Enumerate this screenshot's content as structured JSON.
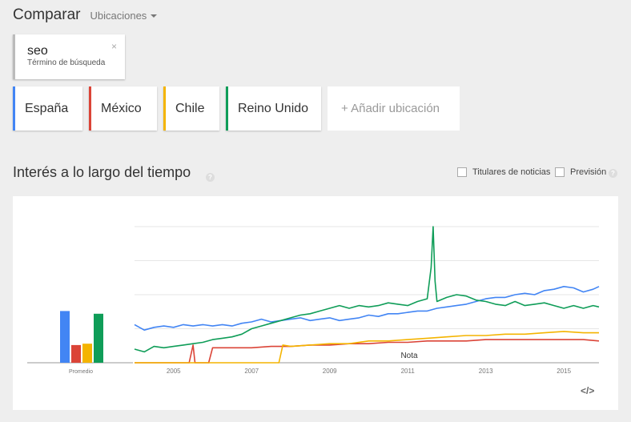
{
  "header": {
    "title": "Comparar",
    "locations_dropdown": "Ubicaciones"
  },
  "search_term": {
    "name": "seo",
    "subtitle": "Término de búsqueda",
    "close": "×"
  },
  "locations": [
    {
      "label": "España",
      "color": "#4285f4"
    },
    {
      "label": "México",
      "color": "#db4437"
    },
    {
      "label": "Chile",
      "color": "#f4b400"
    },
    {
      "label": "Reino Unido",
      "color": "#0f9d58"
    }
  ],
  "add_location": "+ Añadir ubicación",
  "interest": {
    "title": "Interés a lo largo del tiempo",
    "help": "?",
    "options": [
      {
        "label": "Titulares de noticias",
        "checked": false
      },
      {
        "label": "Previsión",
        "checked": false
      }
    ],
    "embed": "</>"
  },
  "chart_data": {
    "type": "line",
    "x_start": 2004.0,
    "x_end": 2015.9,
    "x_ticks": [
      "2005",
      "2007",
      "2009",
      "2011",
      "2013",
      "2015"
    ],
    "ylim": [
      0,
      100
    ],
    "grid": true,
    "annotation": "Nota",
    "average_label": "Promedio",
    "averages": [
      {
        "name": "España",
        "color": "#4285f4",
        "value": 38
      },
      {
        "name": "México",
        "color": "#db4437",
        "value": 13
      },
      {
        "name": "Chile",
        "color": "#f4b400",
        "value": 14
      },
      {
        "name": "Reino Unido",
        "color": "#0f9d58",
        "value": 36
      }
    ],
    "series": [
      {
        "name": "España",
        "color": "#4285f4",
        "points": [
          [
            2004.0,
            28
          ],
          [
            2004.25,
            24
          ],
          [
            2004.5,
            26
          ],
          [
            2004.75,
            27
          ],
          [
            2005.0,
            26
          ],
          [
            2005.25,
            28
          ],
          [
            2005.5,
            27
          ],
          [
            2005.75,
            28
          ],
          [
            2006.0,
            27
          ],
          [
            2006.25,
            28
          ],
          [
            2006.5,
            27
          ],
          [
            2006.75,
            29
          ],
          [
            2007.0,
            30
          ],
          [
            2007.25,
            32
          ],
          [
            2007.5,
            30
          ],
          [
            2007.75,
            31
          ],
          [
            2008.0,
            32
          ],
          [
            2008.25,
            33
          ],
          [
            2008.5,
            31
          ],
          [
            2008.75,
            32
          ],
          [
            2009.0,
            33
          ],
          [
            2009.25,
            31
          ],
          [
            2009.5,
            32
          ],
          [
            2009.75,
            33
          ],
          [
            2010.0,
            35
          ],
          [
            2010.25,
            34
          ],
          [
            2010.5,
            36
          ],
          [
            2010.75,
            36
          ],
          [
            2011.0,
            37
          ],
          [
            2011.25,
            38
          ],
          [
            2011.5,
            38
          ],
          [
            2011.75,
            40
          ],
          [
            2012.0,
            41
          ],
          [
            2012.25,
            42
          ],
          [
            2012.5,
            43
          ],
          [
            2012.75,
            45
          ],
          [
            2013.0,
            47
          ],
          [
            2013.25,
            48
          ],
          [
            2013.5,
            48
          ],
          [
            2013.75,
            50
          ],
          [
            2014.0,
            51
          ],
          [
            2014.25,
            50
          ],
          [
            2014.5,
            53
          ],
          [
            2014.75,
            54
          ],
          [
            2015.0,
            56
          ],
          [
            2015.25,
            55
          ],
          [
            2015.5,
            52
          ],
          [
            2015.75,
            54
          ],
          [
            2015.9,
            56
          ]
        ]
      },
      {
        "name": "México",
        "color": "#db4437",
        "points": [
          [
            2004.0,
            0
          ],
          [
            2005.4,
            0
          ],
          [
            2005.5,
            13
          ],
          [
            2005.55,
            0
          ],
          [
            2005.9,
            0
          ],
          [
            2006.0,
            11
          ],
          [
            2006.5,
            11
          ],
          [
            2007.0,
            11
          ],
          [
            2007.5,
            12
          ],
          [
            2008.0,
            12
          ],
          [
            2008.5,
            13
          ],
          [
            2009.0,
            13
          ],
          [
            2009.5,
            14
          ],
          [
            2010.0,
            14
          ],
          [
            2010.5,
            15
          ],
          [
            2011.0,
            15
          ],
          [
            2011.5,
            16
          ],
          [
            2012.0,
            16
          ],
          [
            2012.5,
            16
          ],
          [
            2013.0,
            17
          ],
          [
            2013.5,
            17
          ],
          [
            2014.0,
            17
          ],
          [
            2014.5,
            17
          ],
          [
            2015.0,
            17
          ],
          [
            2015.5,
            17
          ],
          [
            2015.9,
            16
          ]
        ]
      },
      {
        "name": "Chile",
        "color": "#f4b400",
        "points": [
          [
            2004.0,
            0
          ],
          [
            2007.7,
            0
          ],
          [
            2007.8,
            13
          ],
          [
            2008.0,
            12
          ],
          [
            2008.5,
            13
          ],
          [
            2009.0,
            14
          ],
          [
            2009.5,
            14
          ],
          [
            2010.0,
            16
          ],
          [
            2010.5,
            16
          ],
          [
            2011.0,
            17
          ],
          [
            2011.5,
            18
          ],
          [
            2012.0,
            19
          ],
          [
            2012.5,
            20
          ],
          [
            2013.0,
            20
          ],
          [
            2013.5,
            21
          ],
          [
            2014.0,
            21
          ],
          [
            2014.5,
            22
          ],
          [
            2015.0,
            23
          ],
          [
            2015.5,
            22
          ],
          [
            2015.9,
            22
          ]
        ]
      },
      {
        "name": "Reino Unido",
        "color": "#0f9d58",
        "points": [
          [
            2004.0,
            10
          ],
          [
            2004.25,
            8
          ],
          [
            2004.5,
            12
          ],
          [
            2004.75,
            11
          ],
          [
            2005.0,
            12
          ],
          [
            2005.25,
            13
          ],
          [
            2005.5,
            14
          ],
          [
            2005.75,
            15
          ],
          [
            2006.0,
            17
          ],
          [
            2006.25,
            18
          ],
          [
            2006.5,
            19
          ],
          [
            2006.75,
            21
          ],
          [
            2007.0,
            25
          ],
          [
            2007.25,
            27
          ],
          [
            2007.5,
            29
          ],
          [
            2007.75,
            31
          ],
          [
            2008.0,
            33
          ],
          [
            2008.25,
            35
          ],
          [
            2008.5,
            36
          ],
          [
            2008.75,
            38
          ],
          [
            2009.0,
            40
          ],
          [
            2009.25,
            42
          ],
          [
            2009.5,
            40
          ],
          [
            2009.75,
            42
          ],
          [
            2010.0,
            41
          ],
          [
            2010.25,
            42
          ],
          [
            2010.5,
            44
          ],
          [
            2010.75,
            43
          ],
          [
            2011.0,
            42
          ],
          [
            2011.25,
            45
          ],
          [
            2011.5,
            47
          ],
          [
            2011.6,
            70
          ],
          [
            2011.65,
            100
          ],
          [
            2011.7,
            60
          ],
          [
            2011.75,
            45
          ],
          [
            2012.0,
            48
          ],
          [
            2012.25,
            50
          ],
          [
            2012.5,
            49
          ],
          [
            2012.75,
            46
          ],
          [
            2013.0,
            45
          ],
          [
            2013.25,
            43
          ],
          [
            2013.5,
            42
          ],
          [
            2013.75,
            45
          ],
          [
            2014.0,
            42
          ],
          [
            2014.25,
            43
          ],
          [
            2014.5,
            44
          ],
          [
            2014.75,
            42
          ],
          [
            2015.0,
            40
          ],
          [
            2015.25,
            42
          ],
          [
            2015.5,
            40
          ],
          [
            2015.75,
            42
          ],
          [
            2015.9,
            41
          ]
        ]
      }
    ]
  }
}
